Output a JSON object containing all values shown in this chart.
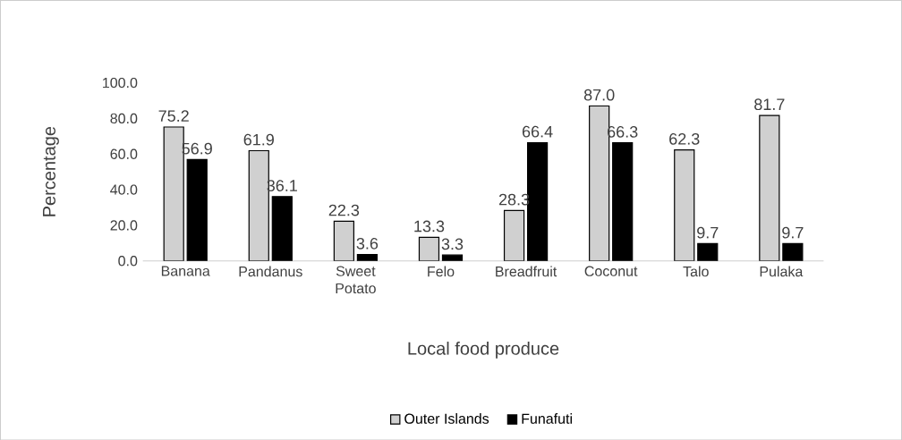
{
  "chart_data": {
    "type": "bar",
    "xlabel": "Local food produce",
    "ylabel": "Percentage",
    "categories": [
      "Banana",
      "Pandanus",
      "Sweet Potato",
      "Felo",
      "Breadfruit",
      "Coconut",
      "Talo",
      "Pulaka"
    ],
    "series": [
      {
        "name": "Outer Islands",
        "color": "#d0d0d0",
        "values": [
          75.2,
          61.9,
          22.3,
          13.3,
          28.3,
          87.0,
          62.3,
          81.7
        ],
        "value_labels": [
          "75.2",
          "61.9",
          "22.3",
          "13.3",
          "28.3",
          "87.0",
          "62.3",
          "81.7"
        ]
      },
      {
        "name": "Funafuti",
        "color": "#000000",
        "values": [
          56.9,
          36.1,
          3.6,
          3.3,
          66.4,
          66.3,
          9.7,
          9.7
        ],
        "value_labels": [
          "56.9",
          "36.1",
          "3.6",
          "3.3",
          "66.4",
          "66.3",
          "9.7",
          "9.7"
        ]
      }
    ],
    "ylim": [
      0,
      100
    ],
    "yticks": [
      {
        "value": 0,
        "label": "0.0"
      },
      {
        "value": 20,
        "label": "20.0"
      },
      {
        "value": 40,
        "label": "40.0"
      },
      {
        "value": 60,
        "label": "60.0"
      },
      {
        "value": 80,
        "label": "80.0"
      },
      {
        "value": 100,
        "label": "100.0"
      }
    ],
    "grid": false,
    "legend": "bottom"
  }
}
